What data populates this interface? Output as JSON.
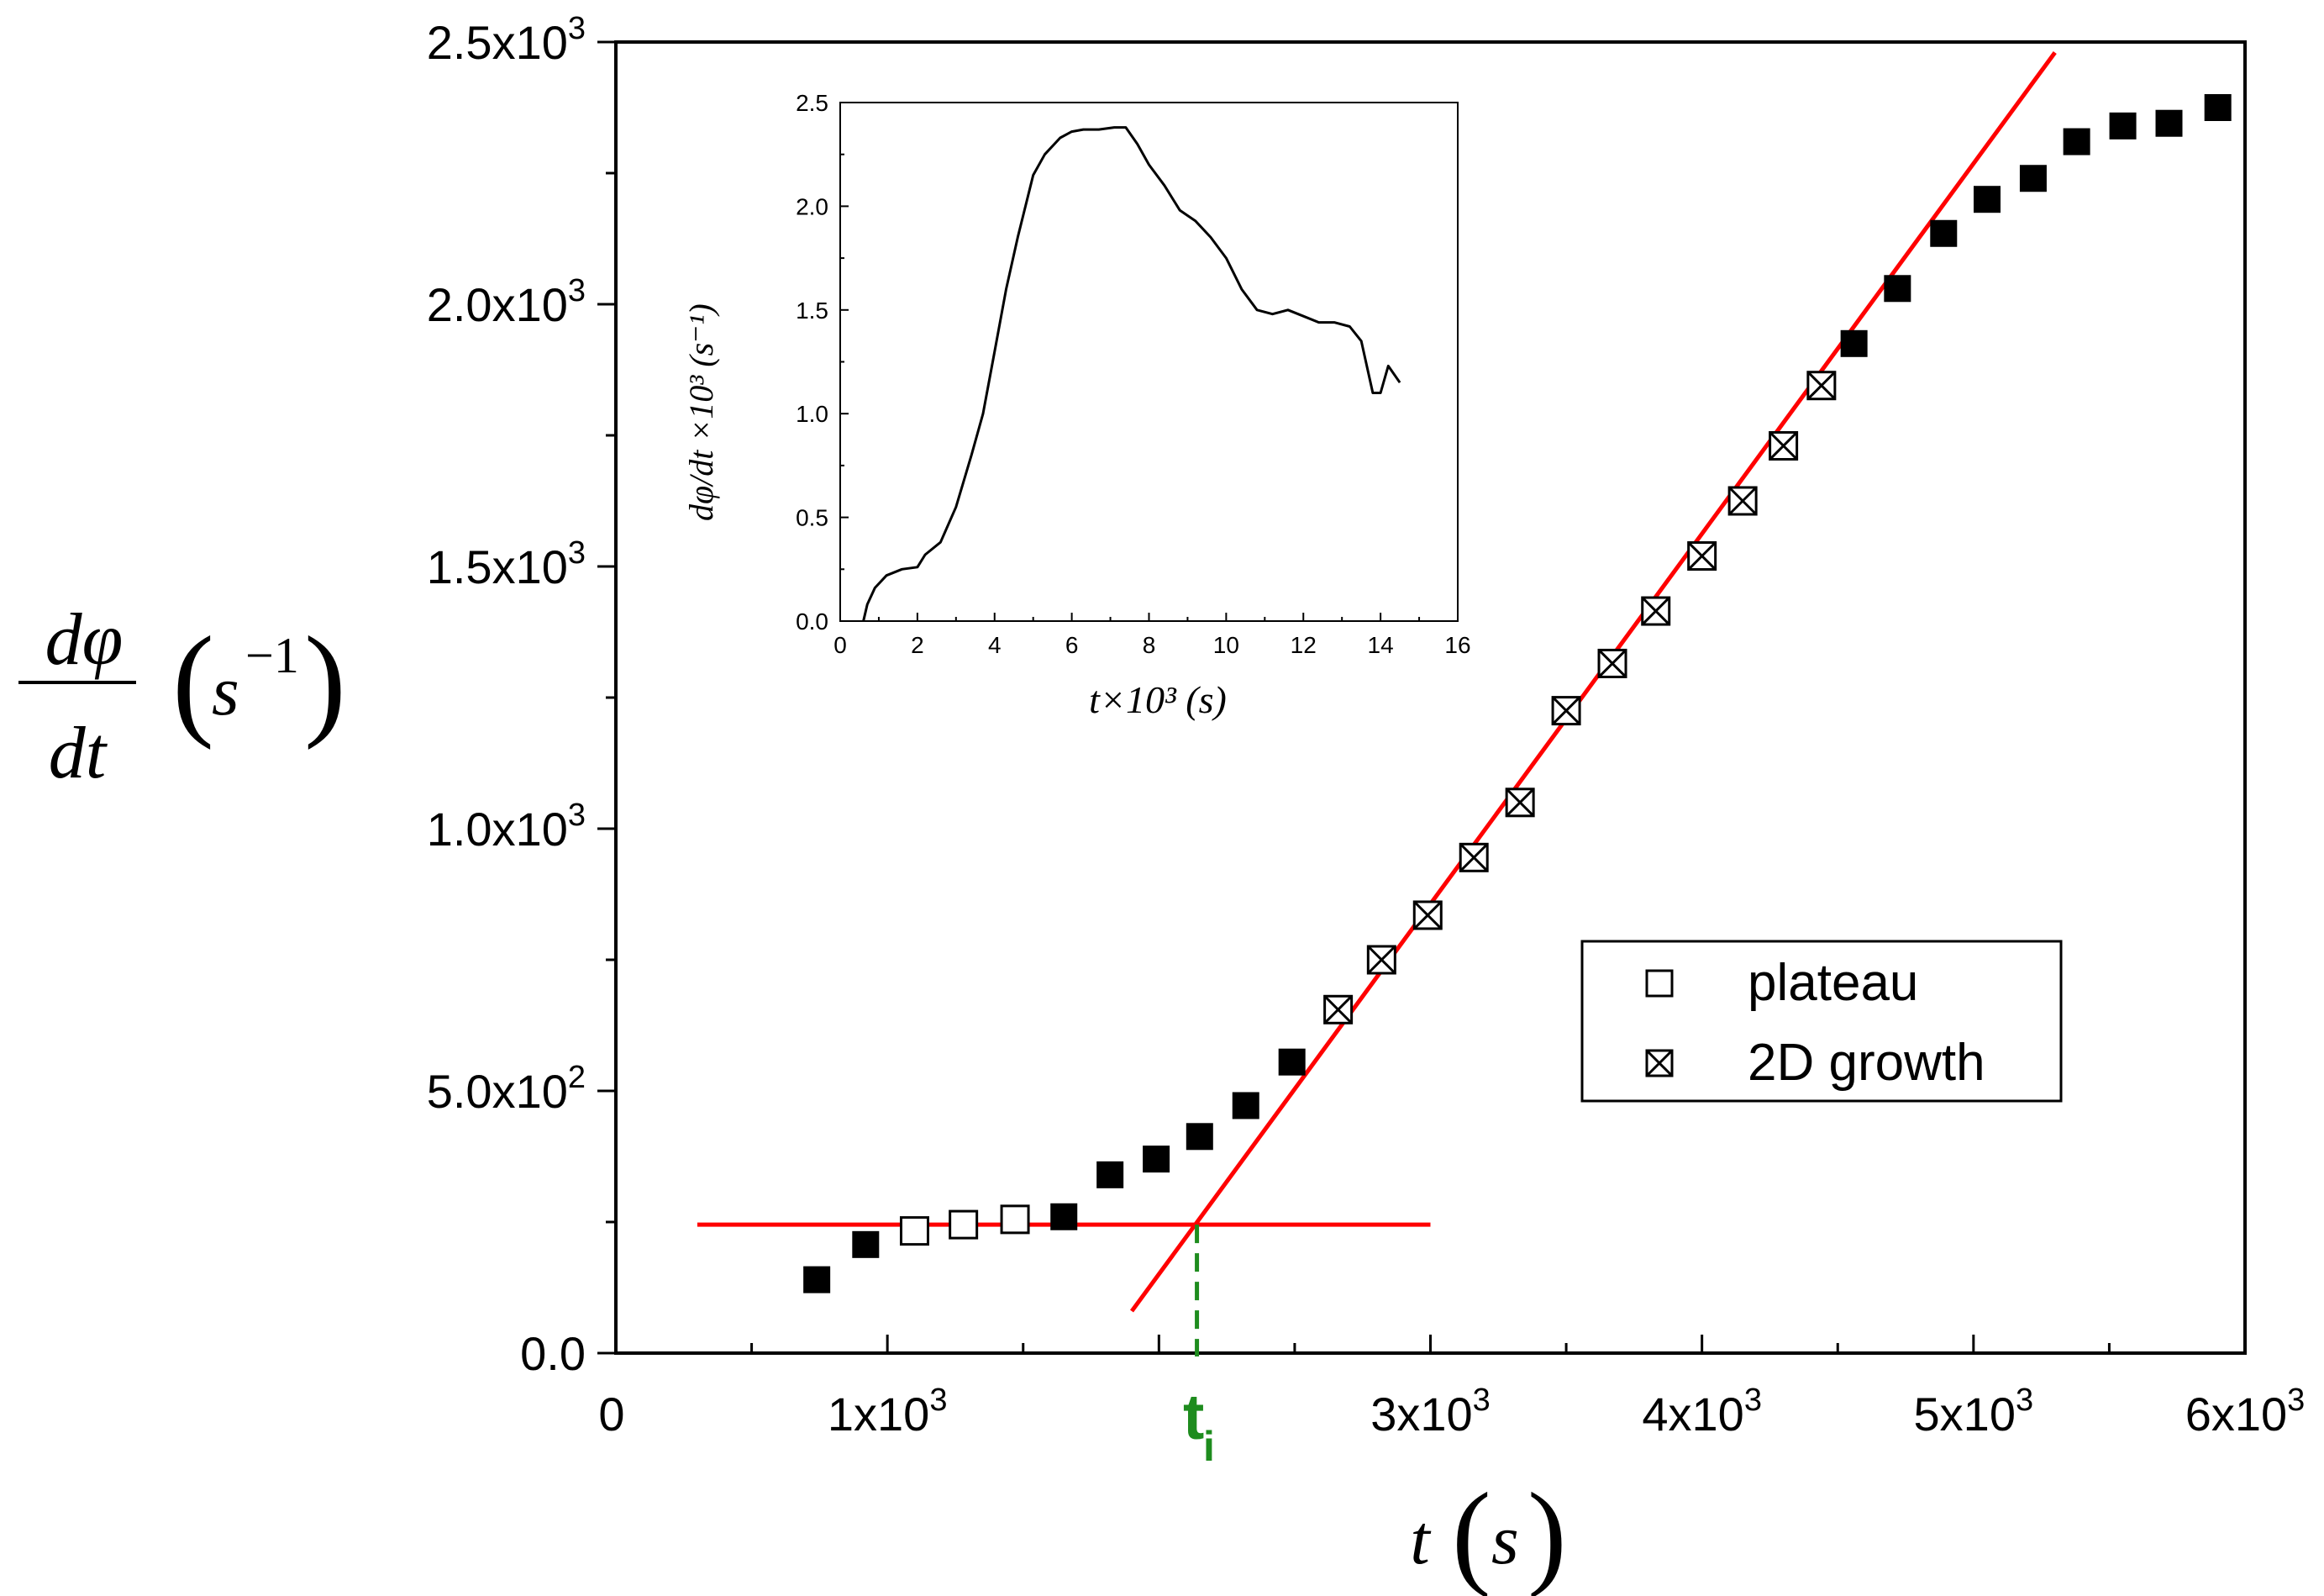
{
  "chart_data": [
    {
      "type": "scatter",
      "title": "",
      "xlabel": {
        "var": "t",
        "unit": "s"
      },
      "ylabel": {
        "num": "dφ",
        "den": "dt",
        "unit": "s",
        "unit_exp": "−1"
      },
      "xlim": [
        0,
        6000
      ],
      "ylim": [
        0,
        2500
      ],
      "x_ticks": [
        {
          "value": 0,
          "mantissa": "0",
          "exp": ""
        },
        {
          "value": 1000,
          "mantissa": "1x10",
          "exp": "3"
        },
        {
          "value": 3000,
          "mantissa": "3x10",
          "exp": "3"
        },
        {
          "value": 4000,
          "mantissa": "4x10",
          "exp": "3"
        },
        {
          "value": 5000,
          "mantissa": "5x10",
          "exp": "3"
        },
        {
          "value": 6000,
          "mantissa": "6x10",
          "exp": "3"
        }
      ],
      "y_ticks": [
        {
          "value": 0,
          "mantissa": "0.0",
          "exp": ""
        },
        {
          "value": 500,
          "mantissa": "5.0x10",
          "exp": "2"
        },
        {
          "value": 1000,
          "mantissa": "1.0x10",
          "exp": "3"
        },
        {
          "value": 1500,
          "mantissa": "1.5x10",
          "exp": "3"
        },
        {
          "value": 2000,
          "mantissa": "2.0x10",
          "exp": "3"
        },
        {
          "value": 2500,
          "mantissa": "2.5x10",
          "exp": "3"
        }
      ],
      "series": [
        {
          "name": "data",
          "marker": "filled-square",
          "points": [
            [
              740,
              140
            ],
            [
              920,
              207
            ],
            [
              1650,
              260
            ],
            [
              1820,
              340
            ],
            [
              1990,
              370
            ],
            [
              2150,
              413
            ],
            [
              2320,
              472
            ],
            [
              2490,
              555
            ],
            [
              4560,
              1925
            ],
            [
              4720,
              2030
            ],
            [
              4890,
              2135
            ],
            [
              5050,
              2200
            ],
            [
              5220,
              2240
            ],
            [
              5380,
              2310
            ],
            [
              5550,
              2340
            ],
            [
              5720,
              2345
            ],
            [
              5900,
              2375
            ]
          ]
        },
        {
          "name": "plateau",
          "marker": "open-square",
          "points": [
            [
              1100,
              233
            ],
            [
              1280,
              245
            ],
            [
              1470,
              255
            ]
          ]
        },
        {
          "name": "2D growth",
          "marker": "crossed-square",
          "points": [
            [
              2660,
              655
            ],
            [
              2820,
              750
            ],
            [
              2990,
              835
            ],
            [
              3160,
              945
            ],
            [
              3330,
              1050
            ],
            [
              3500,
              1225
            ],
            [
              3670,
              1315
            ],
            [
              3830,
              1415
            ],
            [
              4000,
              1520
            ],
            [
              4150,
              1625
            ],
            [
              4300,
              1730
            ],
            [
              4440,
              1845
            ]
          ]
        }
      ],
      "fit_lines": [
        {
          "name": "plateau fit",
          "color": "#ff0000",
          "from": [
            300,
            245
          ],
          "to": [
            3000,
            245
          ]
        },
        {
          "name": "2D growth fit",
          "color": "#ff0000",
          "from": [
            1900,
            80
          ],
          "to": [
            5300,
            2480
          ]
        }
      ],
      "marker_line": {
        "label": "t",
        "subscript": "i",
        "x": 2140,
        "color": "#1e8c1e"
      },
      "legend": {
        "position": "center-right",
        "entries": [
          "plateau",
          "2D growth"
        ]
      }
    },
    {
      "type": "line",
      "title": "",
      "xlabel": "t×10³ (s)",
      "ylabel": "dφ/dt ×10³ (s⁻¹)",
      "xlim": [
        0,
        16
      ],
      "ylim": [
        0,
        2.5
      ],
      "x_ticks": [
        "0",
        "2",
        "4",
        "6",
        "8",
        "10",
        "12",
        "14",
        "16"
      ],
      "y_ticks": [
        "0.0",
        "0.5",
        "1.0",
        "1.5",
        "2.0",
        "2.5"
      ],
      "series": [
        {
          "name": "dφ/dt",
          "points": [
            [
              0.6,
              0.0
            ],
            [
              0.7,
              0.08
            ],
            [
              0.9,
              0.16
            ],
            [
              1.2,
              0.22
            ],
            [
              1.6,
              0.25
            ],
            [
              2.0,
              0.26
            ],
            [
              2.2,
              0.32
            ],
            [
              2.6,
              0.38
            ],
            [
              3.0,
              0.55
            ],
            [
              3.4,
              0.8
            ],
            [
              3.7,
              1.0
            ],
            [
              4.0,
              1.3
            ],
            [
              4.3,
              1.6
            ],
            [
              4.6,
              1.85
            ],
            [
              5.0,
              2.15
            ],
            [
              5.3,
              2.25
            ],
            [
              5.7,
              2.33
            ],
            [
              6.0,
              2.36
            ],
            [
              6.3,
              2.37
            ],
            [
              6.7,
              2.37
            ],
            [
              7.1,
              2.38
            ],
            [
              7.4,
              2.38
            ],
            [
              7.7,
              2.3
            ],
            [
              8.0,
              2.2
            ],
            [
              8.4,
              2.1
            ],
            [
              8.8,
              1.98
            ],
            [
              9.2,
              1.93
            ],
            [
              9.6,
              1.85
            ],
            [
              10.0,
              1.75
            ],
            [
              10.4,
              1.6
            ],
            [
              10.8,
              1.5
            ],
            [
              11.2,
              1.48
            ],
            [
              11.6,
              1.5
            ],
            [
              12.0,
              1.47
            ],
            [
              12.4,
              1.44
            ],
            [
              12.8,
              1.44
            ],
            [
              13.2,
              1.42
            ],
            [
              13.5,
              1.35
            ],
            [
              13.8,
              1.1
            ],
            [
              14.0,
              1.1
            ],
            [
              14.2,
              1.23
            ],
            [
              14.5,
              1.15
            ]
          ]
        }
      ]
    }
  ],
  "legend_labels": {
    "plateau": "plateau",
    "growth": "2D growth"
  }
}
